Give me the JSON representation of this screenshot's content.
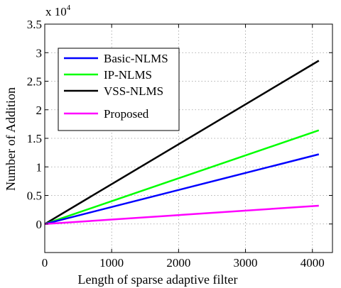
{
  "chart_data": {
    "type": "line",
    "title": "",
    "xlabel": "Length of sparse adaptive filter",
    "ylabel": "Number of Addition",
    "y_multiplier_label": "x 10",
    "y_multiplier_exponent": "4",
    "xlim": [
      0,
      4300
    ],
    "ylim": [
      -0.5,
      3.5
    ],
    "xticks": [
      0,
      1000,
      2000,
      3000,
      4000
    ],
    "xtick_labels": [
      "0",
      "1000",
      "2000",
      "3000",
      "4000"
    ],
    "yticks": [
      0,
      0.5,
      1,
      1.5,
      2,
      2.5,
      3,
      3.5
    ],
    "ytick_labels": [
      "0",
      "0.5",
      "1",
      "1.5",
      "2",
      "2.5",
      "3",
      "3.5"
    ],
    "grid": true,
    "legend_position": "upper-left",
    "series": [
      {
        "name": "Basic-NLMS",
        "color": "#0000ff",
        "x": [
          0,
          4096
        ],
        "y": [
          0,
          1.22
        ]
      },
      {
        "name": "IP-NLMS",
        "color": "#00ff00",
        "x": [
          0,
          4096
        ],
        "y": [
          0,
          1.64
        ]
      },
      {
        "name": "VSS-NLMS",
        "color": "#000000",
        "x": [
          0,
          4096
        ],
        "y": [
          0,
          2.86
        ]
      },
      {
        "name": "Proposed",
        "color": "#ff00ff",
        "x": [
          0,
          4096
        ],
        "y": [
          0,
          0.32
        ]
      }
    ]
  }
}
